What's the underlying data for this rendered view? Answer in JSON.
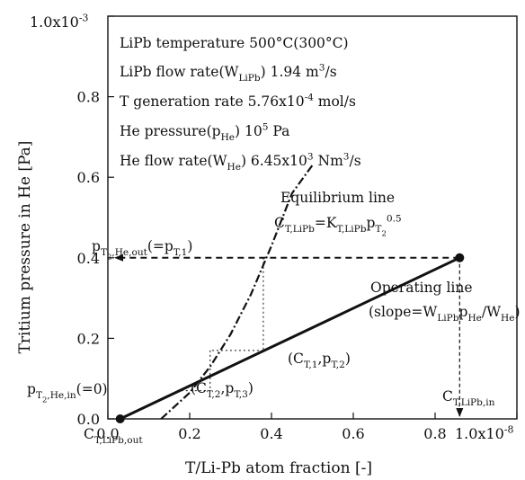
{
  "chart_data": {
    "type": "line",
    "xlabel": "T/Li-Pb atom fraction [-]",
    "ylabel": "Tritium pressure in He [Pa]",
    "xlim": [
      0,
      1.0
    ],
    "ylim": [
      0,
      1.0
    ],
    "x_ticks": [
      "0.0",
      "0.2",
      "0.4",
      "0.6",
      "0.8",
      "1.0x10",
      "-8"
    ],
    "y_ticks": [
      "0.0",
      "0.2",
      "0.4",
      "0.6",
      "0.8",
      "1.0x10",
      "-3"
    ],
    "grid": false,
    "conditions": [
      "LiPb temperature 500°C(300°C)",
      "LiPb flow rate(W",
      "LiPb",
      ") 1.94 m",
      "3",
      "/s",
      "T generation rate 5.76x10",
      "-4",
      " mol/s",
      "He pressure(p",
      "He",
      ") 10",
      "5",
      " Pa",
      "He flow rate(W",
      "He",
      ") 6.45x10",
      "3",
      " Nm",
      "3",
      "/s"
    ],
    "series": [
      {
        "name": "Operating line",
        "points": [
          [
            0.03,
            0.0
          ],
          [
            0.86,
            0.4
          ]
        ]
      },
      {
        "name": "Equilibrium line",
        "points": [
          [
            0.13,
            0.0
          ],
          [
            0.2,
            0.065
          ],
          [
            0.25,
            0.13
          ],
          [
            0.3,
            0.21
          ],
          [
            0.35,
            0.31
          ],
          [
            0.4,
            0.43
          ],
          [
            0.45,
            0.56
          ],
          [
            0.5,
            0.63
          ]
        ]
      }
    ],
    "steps": [
      [
        0.86,
        0.4
      ],
      [
        0.38,
        0.4
      ],
      [
        0.38,
        0.17
      ],
      [
        0.25,
        0.17
      ],
      [
        0.25,
        0.07
      ],
      [
        0.18,
        0.07
      ]
    ],
    "annotations": {
      "equilibrium_title": "Equilibrium line",
      "eq_formula": [
        "C",
        "T,LiPb",
        "=K",
        "T,LiPb",
        "p",
        "T",
        "2",
        "0.5"
      ],
      "operating_title": "Operating line",
      "op_formula": [
        "(slope=W",
        "LiPb",
        "p",
        "He",
        "/W",
        "He",
        ")"
      ],
      "pt2_out": [
        "p",
        "T",
        "2",
        ",He,out",
        "(=p",
        "T,1",
        ")"
      ],
      "pt2_in": [
        "p",
        "T",
        "2",
        ",He,in",
        "(=0)"
      ],
      "ct1": [
        "(C",
        "T,1",
        ",p",
        "T,2",
        ")"
      ],
      "ct2": [
        "(C",
        "T,2",
        ",p",
        "T,3",
        ")"
      ],
      "c_out": [
        "C",
        "T,LiPb,out"
      ],
      "c_in": [
        "C",
        "T,LiPb,in"
      ]
    },
    "colors": {
      "line": "#111111",
      "axis": "#111111",
      "background": "#ffffff"
    }
  }
}
